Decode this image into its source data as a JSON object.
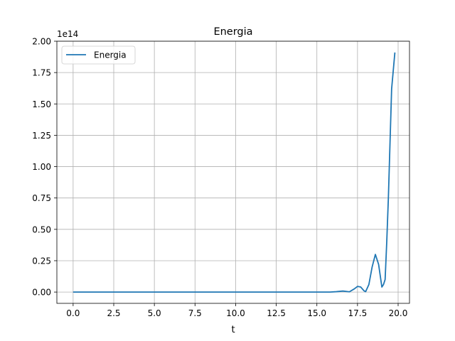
{
  "chart_data": {
    "type": "line",
    "title": "Energia",
    "xlabel": "t",
    "ylabel": "",
    "y_offset_text": "1e14",
    "y_scale_factor": 100000000000000.0,
    "xlim": [
      -1.0,
      20.7
    ],
    "ylim": [
      -0.09,
      2.0
    ],
    "xticks": [
      0,
      2.5,
      5,
      7.5,
      10,
      12.5,
      15,
      17.5,
      20
    ],
    "xtick_labels": [
      "0.0",
      "2.5",
      "5.0",
      "7.5",
      "10.0",
      "12.5",
      "15.0",
      "17.5",
      "20.0"
    ],
    "yticks": [
      0,
      0.25,
      0.5,
      0.75,
      1.0,
      1.25,
      1.5,
      1.75,
      2.0
    ],
    "ytick_labels": [
      "0.00",
      "0.25",
      "0.50",
      "0.75",
      "1.00",
      "1.25",
      "1.50",
      "1.75",
      "2.00"
    ],
    "grid": true,
    "legend_position": "top-left",
    "series": [
      {
        "name": "Energia",
        "color": "#1f77b4",
        "x": [
          0,
          15.0,
          15.8,
          16.2,
          16.6,
          17.0,
          17.3,
          17.5,
          17.7,
          17.9,
          18.0,
          18.2,
          18.4,
          18.6,
          18.8,
          19.0,
          19.1,
          19.2,
          19.3,
          19.4,
          19.6,
          19.8
        ],
        "y": [
          0,
          0,
          0.0,
          0.003,
          0.008,
          0.002,
          0.025,
          0.045,
          0.04,
          0.01,
          0.003,
          0.06,
          0.2,
          0.3,
          0.22,
          0.04,
          0.06,
          0.1,
          0.4,
          0.75,
          1.62,
          1.91
        ]
      }
    ]
  }
}
